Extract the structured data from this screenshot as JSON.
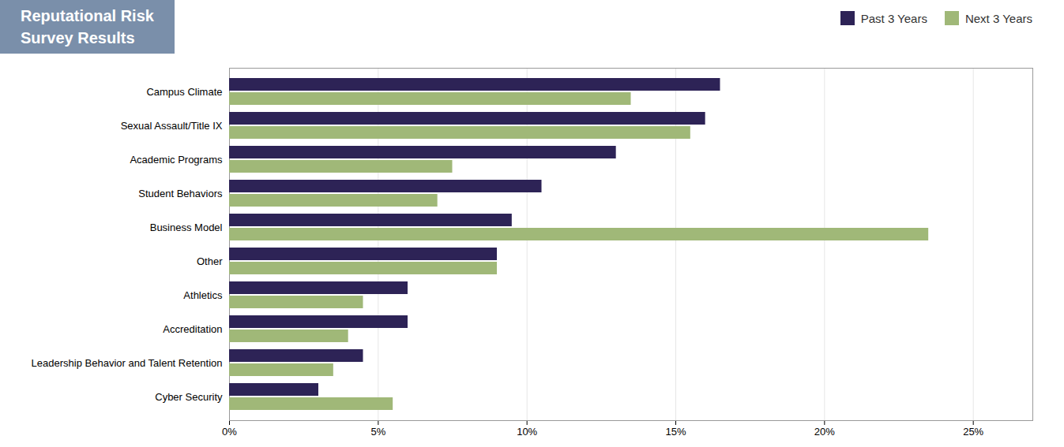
{
  "chart_data": {
    "type": "bar",
    "orientation": "horizontal",
    "title": "Reputational Risk",
    "subtitle": "Survey Results",
    "categories": [
      "Campus Climate",
      "Sexual Assault/Title IX",
      "Academic Programs",
      "Student Behaviors",
      "Business Model",
      "Other",
      "Athletics",
      "Accreditation",
      "Leadership Behavior and Talent Retention",
      "Cyber Security"
    ],
    "series": [
      {
        "name": "Past 3 Years",
        "color": "#2d2356",
        "values": [
          16.5,
          16.0,
          13.0,
          10.5,
          9.5,
          9.0,
          6.0,
          6.0,
          4.5,
          3.0
        ]
      },
      {
        "name": "Next 3 Years",
        "color": "#a0b878",
        "values": [
          13.5,
          15.5,
          7.5,
          7.0,
          23.5,
          9.0,
          4.5,
          4.0,
          3.5,
          5.5
        ]
      }
    ],
    "xlim": [
      0,
      27
    ],
    "xticks": [
      {
        "value": 0,
        "label": "0%"
      },
      {
        "value": 5,
        "label": "5%"
      },
      {
        "value": 10,
        "label": "10%"
      },
      {
        "value": 15,
        "label": "15%"
      },
      {
        "value": 20,
        "label": "20%"
      },
      {
        "value": 25,
        "label": "25%"
      }
    ],
    "grid": true,
    "legend": "upper right"
  }
}
